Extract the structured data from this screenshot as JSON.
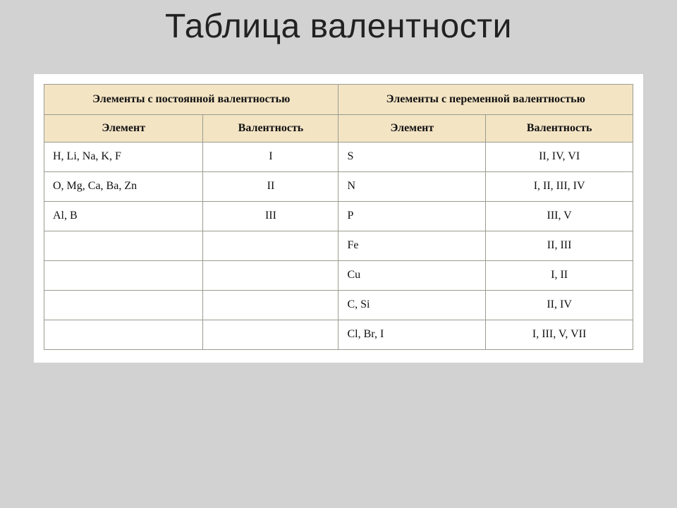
{
  "title": "Таблица валентности",
  "table": {
    "type": "table",
    "background_color": "#ffffff",
    "header_color": "#f3e4c4",
    "border_color": "#9b9b8f",
    "font_family": "Georgia, serif",
    "header_fontsize": 16,
    "cell_fontsize": 16,
    "group_headers": {
      "left": "Элементы с постоянной валентностью",
      "right": "Элементы с переменной валентностью"
    },
    "sub_headers": {
      "element": "Элемент",
      "valency": "Валентность"
    },
    "rows": [
      {
        "left_element": "H, Li, Na, K, F",
        "left_valency": "I",
        "right_element": "S",
        "right_valency": "II, IV, VI"
      },
      {
        "left_element": "O, Mg, Ca, Ba, Zn",
        "left_valency": "II",
        "right_element": "N",
        "right_valency": "I, II, III, IV"
      },
      {
        "left_element": "Al, B",
        "left_valency": "III",
        "right_element": "P",
        "right_valency": "III, V"
      },
      {
        "left_element": "",
        "left_valency": "",
        "right_element": "Fe",
        "right_valency": "II, III"
      },
      {
        "left_element": "",
        "left_valency": "",
        "right_element": "Cu",
        "right_valency": "I, II"
      },
      {
        "left_element": "",
        "left_valency": "",
        "right_element": "C, Si",
        "right_valency": "II, IV"
      },
      {
        "left_element": "",
        "left_valency": "",
        "right_element": "Cl, Br, I",
        "right_valency": "I, III, V, VII"
      }
    ]
  }
}
